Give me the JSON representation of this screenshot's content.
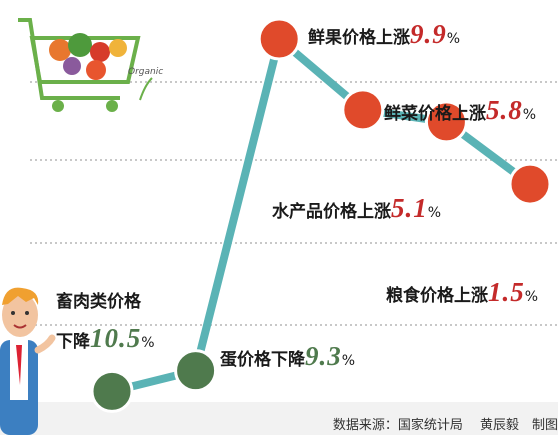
{
  "chart_data": {
    "type": "line",
    "categories": [
      "畜肉类价格\n下降",
      "蛋价格下降",
      "鲜果价格上涨",
      "鲜菜价格上涨",
      "水产品价格上涨",
      "粮食价格上涨"
    ],
    "values": [
      -10.5,
      -9.3,
      9.9,
      5.8,
      5.1,
      1.5
    ],
    "value_labels": [
      "10.5",
      "9.3",
      "9.9",
      "5.8",
      "5.1",
      "1.5"
    ],
    "unit": "%",
    "ylim": [
      -11,
      11
    ],
    "line_color": "#5ab3b5",
    "increase_color": "#e04a2b",
    "decrease_color": "#4f7a4d",
    "source": "数据来源：国家统计局　 黄辰毅　制图"
  }
}
